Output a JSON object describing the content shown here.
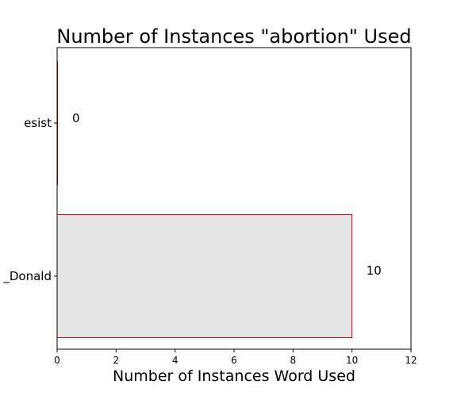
{
  "chart_data": {
    "type": "bar",
    "orientation": "horizontal",
    "title": "Number of Instances \"abortion\" Used",
    "xlabel": "Number of Instances Word Used",
    "ylabel": "",
    "categories": [
      "esist",
      "_Donald"
    ],
    "values": [
      0,
      10
    ],
    "data_labels": [
      "0",
      "10"
    ],
    "xlim": [
      0,
      12
    ],
    "xticks": [
      0,
      2,
      4,
      6,
      8,
      10,
      12
    ],
    "grid": false,
    "bar_fill": "#e5e5e5",
    "bar_edge": "#cc0000"
  }
}
